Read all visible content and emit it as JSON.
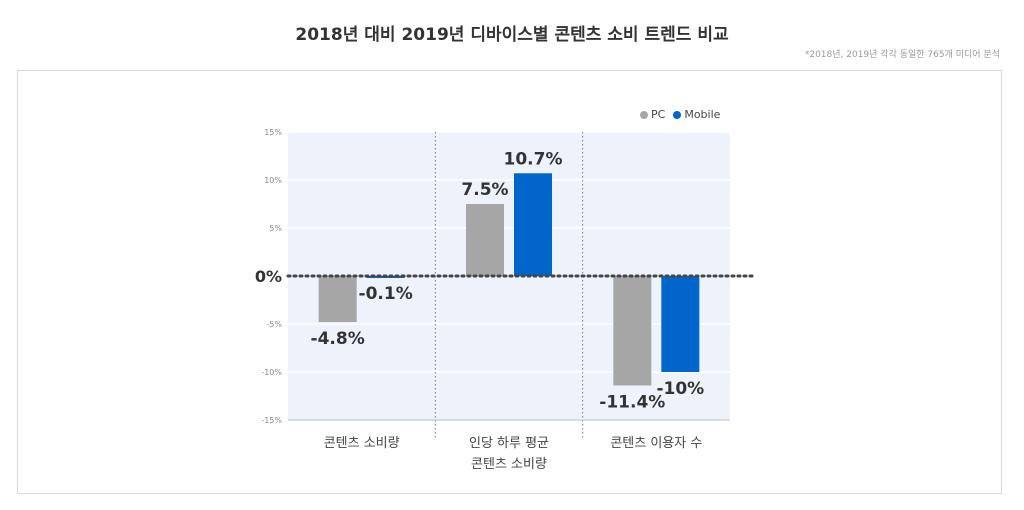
{
  "title": "2018년 대비 2019년 디바이스별 콘텐츠 소비 트렌드 비교",
  "note": "*2018년, 2019년 각각 동일한 765개 미디어 분석",
  "legend": [
    {
      "name": "PC",
      "color": "#a6a6a6"
    },
    {
      "name": "Mobile",
      "color": "#0066cc"
    }
  ],
  "chart_data": {
    "type": "bar",
    "categories": [
      [
        "콘텐츠 소비량"
      ],
      [
        "인당 하루 평균",
        "콘텐츠 소비량"
      ],
      [
        "콘텐츠 이용자 수"
      ]
    ],
    "series": [
      {
        "name": "PC",
        "color": "#a6a6a6",
        "values": [
          -4.8,
          7.5,
          -11.4
        ],
        "labels": [
          "-4.8%",
          "7.5%",
          "-11.4%"
        ]
      },
      {
        "name": "Mobile",
        "color": "#0066cc",
        "values": [
          -0.1,
          10.7,
          -10
        ],
        "labels": [
          "-0.1%",
          "10.7%",
          "-10%"
        ]
      }
    ],
    "yticks": [
      15,
      10,
      5,
      0,
      -5,
      -10,
      -15
    ],
    "ytick_labels": [
      "15%",
      "10%",
      "5%",
      "0%",
      "-5%",
      "-10%",
      "-15%"
    ],
    "ylim": [
      -15,
      15
    ],
    "grid": true,
    "legend_position": "top-right"
  }
}
